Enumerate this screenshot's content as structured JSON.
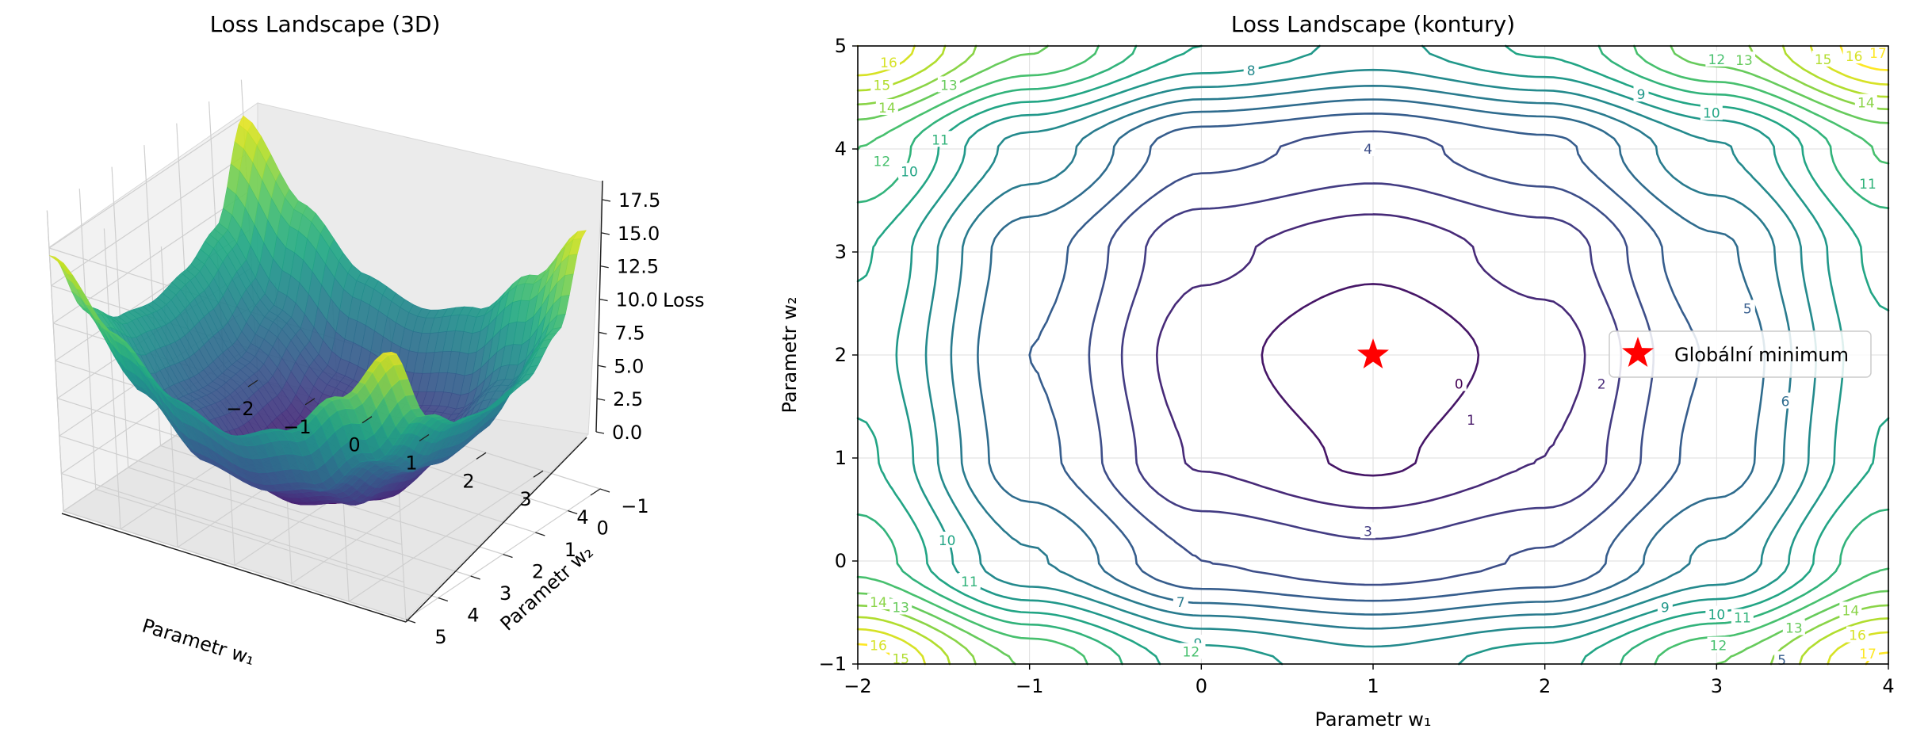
{
  "chart_data": [
    {
      "type": "surface",
      "title": "Loss Landscape (3D)",
      "xlabel": "Parametr w₁",
      "ylabel": "Parametr w₂",
      "zlabel": "Loss",
      "xlim": [
        -2,
        4
      ],
      "ylim": [
        -1,
        5
      ],
      "zlim": [
        0,
        17.5
      ],
      "xticks": [
        "−2",
        "−1",
        "0",
        "1",
        "2",
        "3",
        "4"
      ],
      "yticks": [
        "−1",
        "0",
        "1",
        "2",
        "3",
        "4",
        "5"
      ],
      "zticks": [
        "0.0",
        "2.5",
        "5.0",
        "7.5",
        "10.0",
        "12.5",
        "15.0",
        "17.5"
      ],
      "colormap": "viridis",
      "surface": {
        "grid_w1": [
          -2,
          -1,
          0,
          1,
          2,
          3,
          4
        ],
        "grid_w2": [
          -1,
          0,
          1,
          2,
          3,
          4,
          5
        ],
        "loss_rows_by_w2": [
          [
            17.6,
            12.9,
            9.5,
            8.4,
            9.6,
            13.0,
            17.2
          ],
          [
            11.6,
            7.1,
            4.0,
            3.3,
            4.1,
            7.2,
            11.9
          ],
          [
            10.2,
            5.3,
            1.9,
            0.8,
            2.0,
            5.4,
            10.1
          ],
          [
            9.6,
            5.0,
            1.4,
            0.0,
            1.5,
            5.1,
            9.8
          ],
          [
            10.1,
            5.4,
            2.2,
            1.3,
            2.4,
            5.8,
            10.3
          ],
          [
            12.0,
            7.6,
            4.3,
            3.6,
            4.7,
            7.9,
            12.1
          ],
          [
            17.0,
            13.1,
            10.0,
            8.7,
            10.2,
            13.6,
            17.8
          ]
        ]
      }
    },
    {
      "type": "contour",
      "title": "Loss Landscape (kontury)",
      "xlabel": "Parametr w₁",
      "ylabel": "Parametr w₂",
      "xlim": [
        -2,
        4
      ],
      "ylim": [
        -1,
        5
      ],
      "xticks": [
        "−2",
        "−1",
        "0",
        "1",
        "2",
        "3",
        "4"
      ],
      "yticks": [
        "−1",
        "0",
        "1",
        "2",
        "3",
        "4",
        "5"
      ],
      "levels": [
        0,
        1,
        2,
        3,
        4,
        5,
        6,
        7,
        8,
        9,
        10,
        11,
        12,
        13,
        14,
        15,
        16,
        17
      ],
      "colormap": "viridis",
      "grid": true,
      "legend": {
        "placement": "right",
        "entries": [
          "Globální minimum"
        ]
      },
      "marker": {
        "label": "Globální minimum",
        "x": 1,
        "y": 2,
        "color": "#ff0000",
        "shape": "star"
      },
      "contour_labels": [
        {
          "text": "0",
          "x": 1.5,
          "y": 1.72,
          "level": 0
        },
        {
          "text": "1",
          "x": 1.57,
          "y": 1.37,
          "level": 1
        },
        {
          "text": "2",
          "x": 2.33,
          "y": 1.72,
          "level": 2
        },
        {
          "text": "3",
          "x": 0.97,
          "y": 0.29,
          "level": 3
        },
        {
          "text": "4",
          "x": 0.97,
          "y": 4.0,
          "level": 4
        },
        {
          "text": "5",
          "x": 3.18,
          "y": 2.45,
          "level": 5
        },
        {
          "text": "6",
          "x": 3.4,
          "y": 1.55,
          "level": 6
        },
        {
          "text": "7",
          "x": -0.12,
          "y": -0.4,
          "level": 7
        },
        {
          "text": "8",
          "x": 0.29,
          "y": 4.76,
          "level": 8
        },
        {
          "text": "9",
          "x": 2.56,
          "y": 4.53,
          "level": 9
        },
        {
          "text": "9",
          "x": -0.02,
          "y": -0.8,
          "level": 9
        },
        {
          "text": "9",
          "x": 2.7,
          "y": -0.45,
          "level": 9
        },
        {
          "text": "10",
          "x": 2.97,
          "y": 4.35,
          "level": 10
        },
        {
          "text": "10",
          "x": -1.7,
          "y": 3.78,
          "level": 10
        },
        {
          "text": "10",
          "x": -1.48,
          "y": 0.2,
          "level": 10
        },
        {
          "text": "10",
          "x": 3.0,
          "y": -0.52,
          "level": 10
        },
        {
          "text": "11",
          "x": 3.88,
          "y": 3.66,
          "level": 11
        },
        {
          "text": "11",
          "x": -1.52,
          "y": 4.09,
          "level": 11
        },
        {
          "text": "11",
          "x": -1.35,
          "y": -0.2,
          "level": 11
        },
        {
          "text": "11",
          "x": 3.15,
          "y": -0.55,
          "level": 11
        },
        {
          "text": "12",
          "x": 3.0,
          "y": 4.87,
          "level": 12
        },
        {
          "text": "12",
          "x": -1.86,
          "y": 3.88,
          "level": 12
        },
        {
          "text": "12",
          "x": -0.06,
          "y": -0.88,
          "level": 12
        },
        {
          "text": "12",
          "x": 3.01,
          "y": -0.82,
          "level": 12
        },
        {
          "text": "13",
          "x": 3.16,
          "y": 4.86,
          "level": 13
        },
        {
          "text": "13",
          "x": -1.47,
          "y": 4.62,
          "level": 13
        },
        {
          "text": "13",
          "x": -1.75,
          "y": -0.45,
          "level": 13
        },
        {
          "text": "13",
          "x": 3.45,
          "y": -0.65,
          "level": 13
        },
        {
          "text": "14",
          "x": 3.87,
          "y": 4.45,
          "level": 14
        },
        {
          "text": "14",
          "x": -1.83,
          "y": 4.4,
          "level": 14
        },
        {
          "text": "14",
          "x": -1.88,
          "y": -0.4,
          "level": 14
        },
        {
          "text": "14",
          "x": 3.78,
          "y": -0.48,
          "level": 14
        },
        {
          "text": "15",
          "x": 3.62,
          "y": 4.87,
          "level": 15
        },
        {
          "text": "15",
          "x": -1.86,
          "y": 4.62,
          "level": 15
        },
        {
          "text": "15",
          "x": -1.75,
          "y": -0.95,
          "level": 15
        },
        {
          "text": "16",
          "x": 3.8,
          "y": 4.9,
          "level": 16
        },
        {
          "text": "16",
          "x": -1.82,
          "y": 4.84,
          "level": 16
        },
        {
          "text": "16",
          "x": -1.88,
          "y": -0.82,
          "level": 16
        },
        {
          "text": "16",
          "x": 3.82,
          "y": -0.72,
          "level": 16
        },
        {
          "text": "17",
          "x": 3.94,
          "y": 4.93,
          "level": 17
        },
        {
          "text": "17",
          "x": 3.88,
          "y": -0.9,
          "level": 17
        },
        {
          "text": "5",
          "x": 3.38,
          "y": -0.96,
          "level": 5
        }
      ]
    }
  ]
}
